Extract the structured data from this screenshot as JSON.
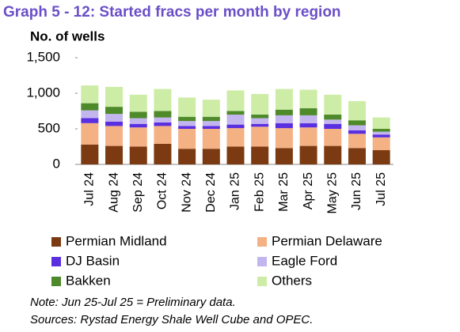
{
  "chart_data": {
    "type": "stacked_bar",
    "title": "Graph 5 - 12: Started fracs per month by region",
    "y_label": "No. of wells",
    "categories": [
      "Jul 24",
      "Aug 24",
      "Sep 24",
      "Oct 24",
      "Nov 24",
      "Dec 24",
      "Jan 25",
      "Feb 25",
      "Mar 25",
      "Apr 25",
      "May 25",
      "Jun 25",
      "Jul 25"
    ],
    "series": [
      {
        "name": "Permian Midland",
        "color": "#7b3a12",
        "values": [
          280,
          260,
          250,
          290,
          220,
          220,
          250,
          250,
          230,
          260,
          260,
          230,
          200
        ]
      },
      {
        "name": "Permian Delaware",
        "color": "#f4b183",
        "values": [
          300,
          280,
          270,
          250,
          280,
          280,
          260,
          280,
          280,
          260,
          240,
          200,
          180
        ]
      },
      {
        "name": "DJ Basin",
        "color": "#5a2fe0",
        "values": [
          70,
          60,
          50,
          50,
          40,
          40,
          50,
          40,
          70,
          60,
          70,
          50,
          40
        ]
      },
      {
        "name": "Eagle Ford",
        "color": "#c3b5ee",
        "values": [
          110,
          110,
          80,
          70,
          70,
          70,
          140,
          80,
          110,
          110,
          60,
          70,
          40
        ]
      },
      {
        "name": "Bakken",
        "color": "#4e8a2a",
        "values": [
          100,
          100,
          90,
          90,
          60,
          60,
          50,
          50,
          80,
          100,
          70,
          70,
          40
        ]
      },
      {
        "name": "Others",
        "color": "#cdeca6",
        "values": [
          250,
          280,
          240,
          310,
          270,
          240,
          290,
          290,
          290,
          260,
          280,
          270,
          160
        ]
      }
    ],
    "ylim": [
      0,
      1500
    ],
    "yticks": [
      0,
      500,
      {
        "value": 1000,
        "label": "1,000"
      },
      {
        "value": 1500,
        "label": "1,500"
      }
    ],
    "notes": [
      "Note: Jun 25-Jul 25 = Preliminary data.",
      "Sources: Rystad Energy Shale Well Cube and OPEC."
    ]
  }
}
